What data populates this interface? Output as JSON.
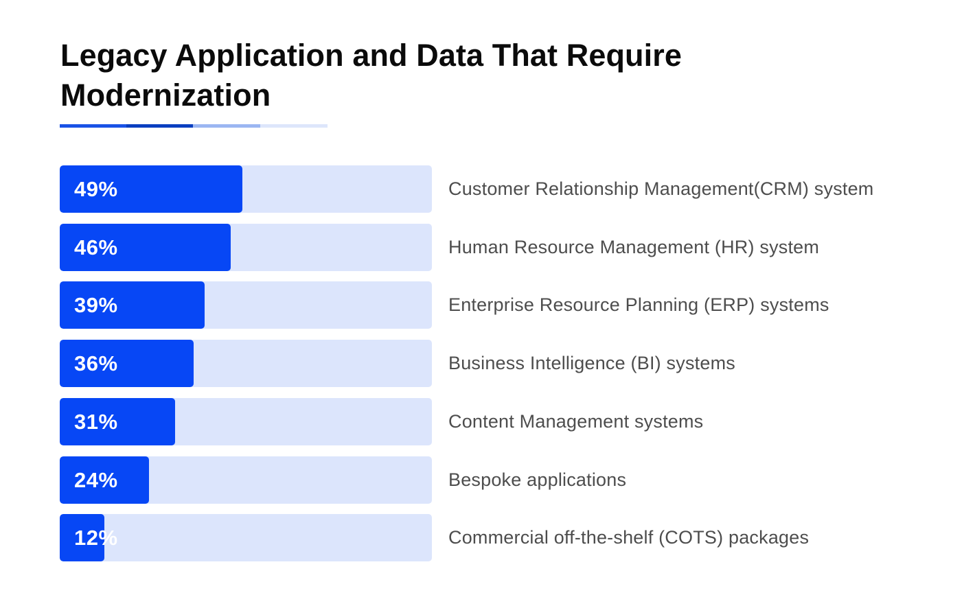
{
  "chart_data": {
    "type": "bar",
    "orientation": "horizontal",
    "title": "Legacy Application and Data That Require Modernization",
    "categories": [
      "Customer Relationship Management(CRM) system",
      "Human Resource Management (HR) system",
      "Enterprise Resource Planning (ERP) systems",
      "Business Intelligence (BI) systems",
      "Content Management systems",
      "Bespoke applications",
      "Commercial off-the-shelf (COTS) packages"
    ],
    "values": [
      49,
      46,
      39,
      36,
      31,
      24,
      12
    ],
    "value_labels": [
      "49%",
      "46%",
      "39%",
      "36%",
      "31%",
      "24%",
      "12%"
    ],
    "xlim": [
      0,
      100
    ],
    "grid": false,
    "legend": "none"
  },
  "colors": {
    "bar_fill": "#0747f5",
    "track": "#dce5fc",
    "underline": [
      "#1a52e6",
      "#0a3fc0",
      "#9bb6f2",
      "#dde6fb"
    ]
  }
}
